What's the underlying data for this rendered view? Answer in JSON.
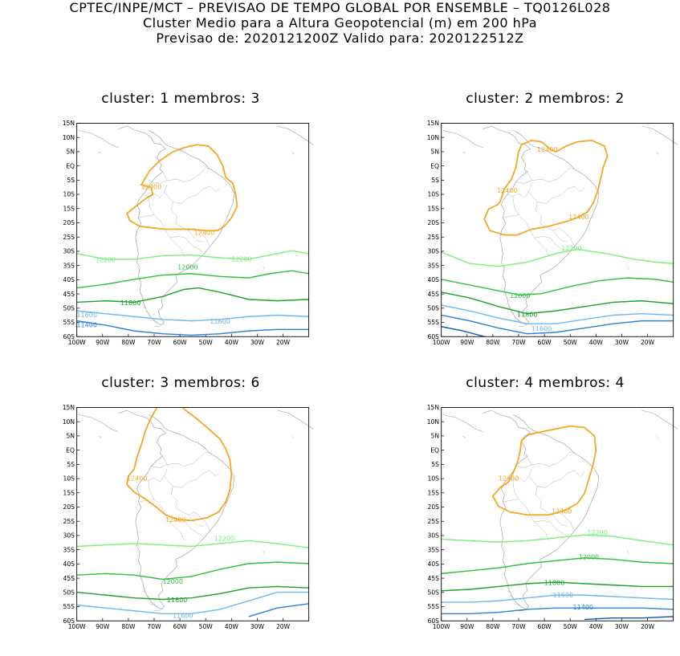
{
  "header": {
    "line1": "CPTEC/INPE/MCT – PREVISAO DE TEMPO GLOBAL POR ENSEMBLE – TQ0126L028",
    "line2": "Cluster Medio para a Altura Geopotencial (m) em 200 hPa",
    "line3": "Previsao de: 2020121200Z    Valido para: 2020122512Z"
  },
  "lat_labels": [
    "15N",
    "10N",
    "5N",
    "EQ",
    "5S",
    "10S",
    "15S",
    "20S",
    "25S",
    "30S",
    "35S",
    "40S",
    "45S",
    "50S",
    "55S",
    "60S"
  ],
  "lon_labels": [
    "100W",
    "90W",
    "80W",
    "70W",
    "60W",
    "50W",
    "40W",
    "30W",
    "20W"
  ],
  "colors": {
    "c12400": "#f5a623",
    "c12200": "#7af07a",
    "c12000": "#2cc23c",
    "c11800": "#1aa12a",
    "c11600": "#72b6ee",
    "c11400": "#2a82dc"
  },
  "panels": [
    {
      "title": "cluster: 1   membros: 3",
      "labels": {
        "a": "12400",
        "b": "12400",
        "c": "12200",
        "d": "12200",
        "e": "12000",
        "f": "11800",
        "g": "11600",
        "h": "11600",
        "i": "11400"
      }
    },
    {
      "title": "cluster: 2   membros: 2",
      "labels": {
        "a": "12400",
        "b": "12400",
        "c": "12400",
        "d": "12200",
        "e": "12000",
        "f": "11800",
        "g": "11600"
      }
    },
    {
      "title": "cluster: 3   membros: 6",
      "labels": {
        "a": "12400",
        "b": "12400",
        "c": "12200",
        "d": "12000",
        "e": "11800",
        "f": "11600"
      }
    },
    {
      "title": "cluster: 4   membros: 4",
      "labels": {
        "a": "12400",
        "b": "12400",
        "c": "12200",
        "d": "12000",
        "e": "11800",
        "f": "11600",
        "g": "11400"
      }
    }
  ]
}
